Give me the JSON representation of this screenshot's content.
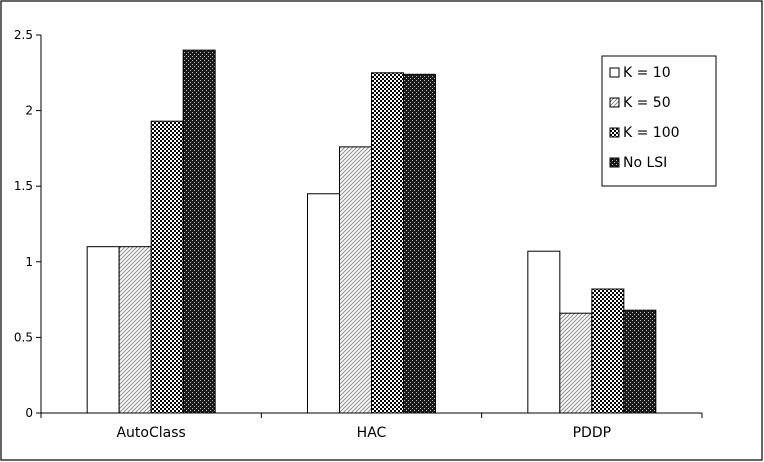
{
  "chart_data": {
    "type": "bar",
    "categories": [
      "AutoClass",
      "HAC",
      "PDDP"
    ],
    "series": [
      {
        "name": "K = 10",
        "values": [
          1.1,
          1.45,
          1.07
        ]
      },
      {
        "name": "K = 50",
        "values": [
          1.1,
          1.76,
          0.66
        ]
      },
      {
        "name": "K = 100",
        "values": [
          1.93,
          2.25,
          0.82
        ]
      },
      {
        "name": "No LSI",
        "values": [
          2.4,
          2.24,
          0.68
        ]
      }
    ],
    "yticks": [
      "0",
      "0.5",
      "1",
      "1.5",
      "2",
      "2.5"
    ],
    "ylim": [
      0,
      2.5
    ],
    "grid": false,
    "legend_position": "top-right",
    "title": "",
    "xlabel": "",
    "ylabel": ""
  }
}
